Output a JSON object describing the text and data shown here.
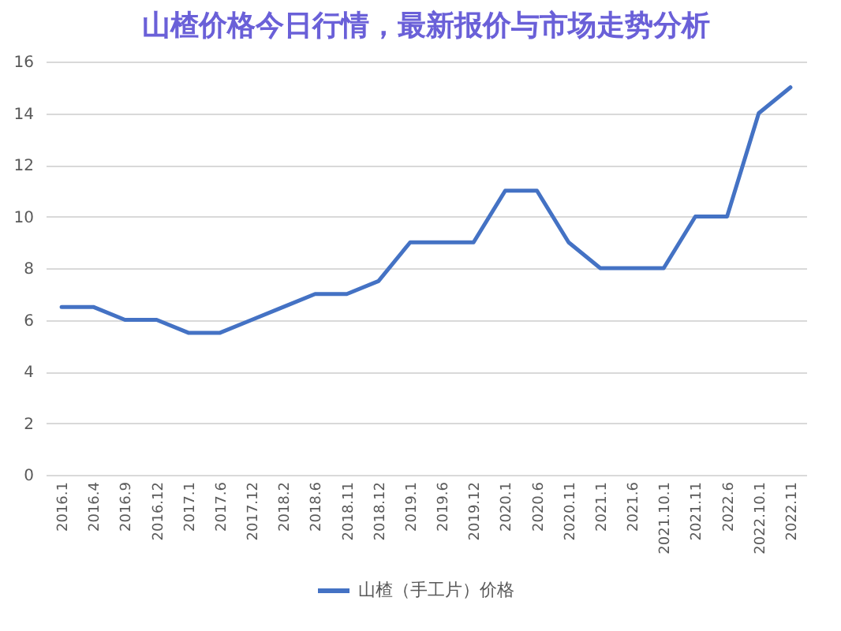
{
  "chart_data": {
    "type": "line",
    "title": "山楂价格今日行情，最新报价与市场走势分析",
    "categories": [
      "2016.1",
      "2016.4",
      "2016.9",
      "2016.12",
      "2017.1",
      "2017.6",
      "2017.12",
      "2018.2",
      "2018.6",
      "2018.11",
      "2018.12",
      "2019.1",
      "2019.6",
      "2019.12",
      "2020.1",
      "2020.6",
      "2020.11",
      "2021.1",
      "2021.6",
      "2021.10.1",
      "2021.11",
      "2022.6",
      "2022.10.1",
      "2022.11"
    ],
    "series": [
      {
        "name": "山楂（手工片）价格",
        "color": "#4472c4",
        "values": [
          6.5,
          6.5,
          6,
          6,
          5.5,
          5.5,
          6,
          6.5,
          7,
          7,
          7.5,
          9,
          9,
          9,
          11,
          11,
          9,
          8,
          8,
          8,
          10,
          10,
          14,
          15
        ]
      }
    ],
    "ylim": [
      0,
      16
    ],
    "yticks": [
      0,
      2,
      4,
      6,
      8,
      10,
      12,
      14,
      16
    ],
    "grid": "y",
    "legend": "bottom",
    "line_style": "solid"
  }
}
